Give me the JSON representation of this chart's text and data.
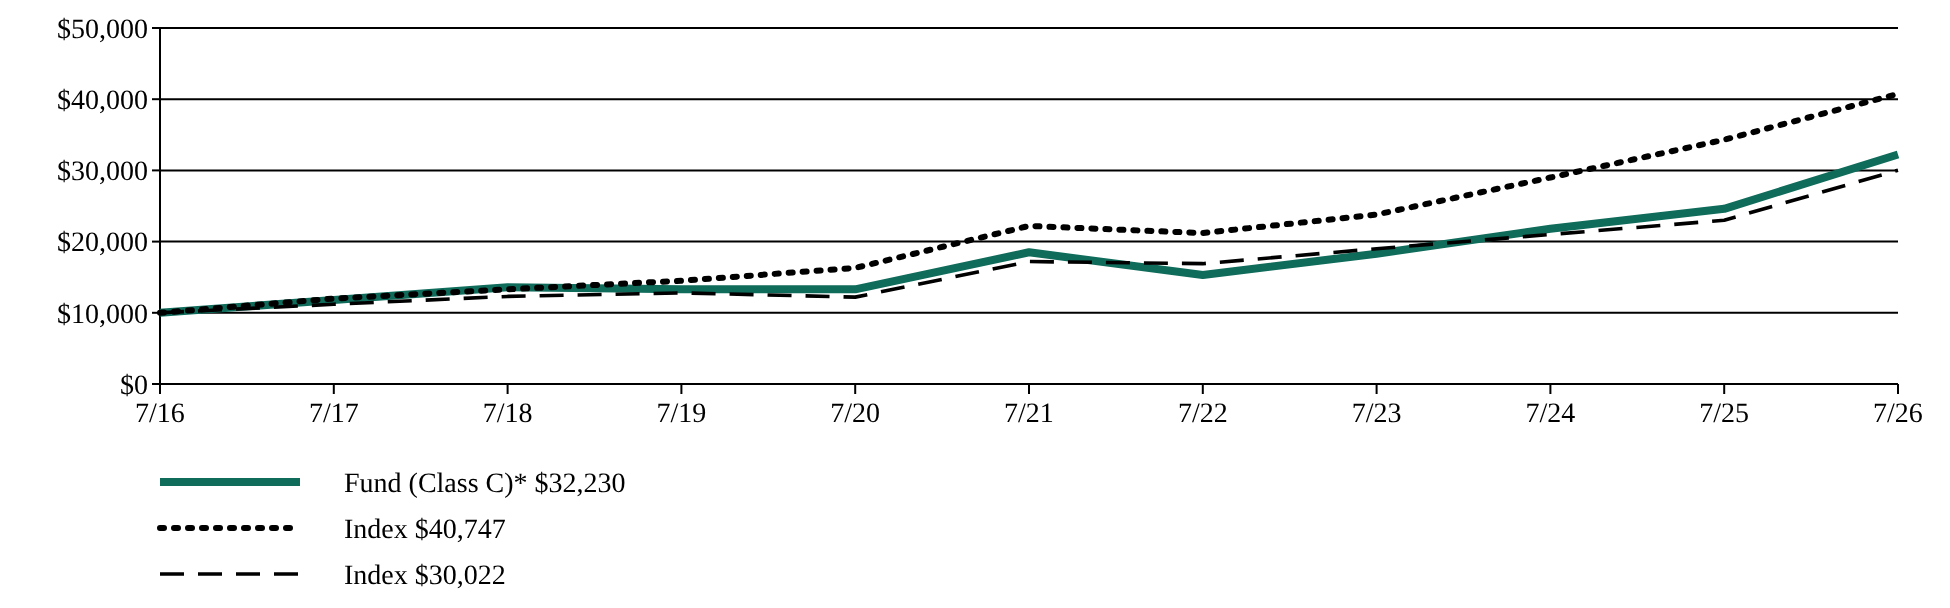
{
  "chart_data": {
    "type": "line",
    "categories": [
      "7/16",
      "7/17",
      "7/18",
      "7/19",
      "7/20",
      "7/21",
      "7/22",
      "7/23",
      "7/24",
      "7/25",
      "7/26"
    ],
    "ylim": [
      0,
      50000
    ],
    "yticks": [
      {
        "value": 0,
        "label": "$0"
      },
      {
        "value": 10000,
        "label": "$10,000"
      },
      {
        "value": 20000,
        "label": "$20,000"
      },
      {
        "value": 30000,
        "label": "$30,000"
      },
      {
        "value": 40000,
        "label": "$40,000"
      },
      {
        "value": 50000,
        "label": "$50,000"
      }
    ],
    "grid": "y",
    "legend": "bottom",
    "series": [
      {
        "name": "Fund (Class C)* $32,230",
        "color": "#0f6b5a",
        "line_style": "solid",
        "values": [
          10000,
          11800,
          13600,
          13300,
          13300,
          18500,
          15300,
          18300,
          21800,
          24600,
          32230
        ]
      },
      {
        "name": "Index $40,747",
        "color": "#000000",
        "line_style": "dotted",
        "values": [
          10000,
          12000,
          13300,
          14500,
          16300,
          22200,
          21200,
          23800,
          29000,
          34300,
          40747
        ]
      },
      {
        "name": "Index $30,022",
        "color": "#000000",
        "line_style": "dashed",
        "values": [
          10000,
          11200,
          12300,
          12800,
          12200,
          17200,
          16900,
          19000,
          21000,
          23000,
          30022
        ]
      }
    ]
  }
}
